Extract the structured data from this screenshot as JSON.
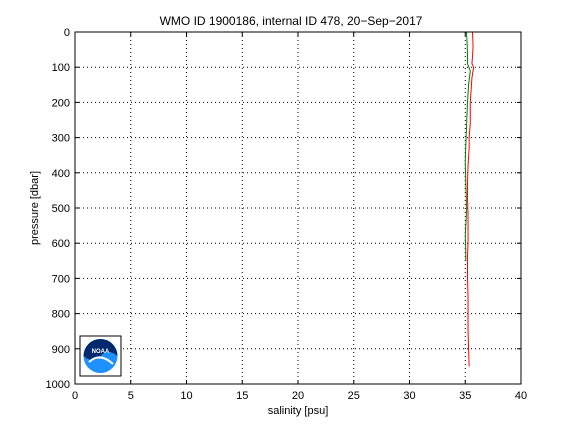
{
  "chart_data": {
    "type": "line",
    "title": "WMO ID 1900186, internal ID 478, 20−Sep−2017",
    "xlabel": "salinity [psu]",
    "ylabel": "pressure [dbar]",
    "xlim": [
      0,
      40
    ],
    "ylim": [
      0,
      1000
    ],
    "y_reversed": true,
    "grid": true,
    "grid_style": "dotted",
    "x_ticks": [
      0,
      5,
      10,
      15,
      20,
      25,
      30,
      35,
      40
    ],
    "y_ticks": [
      0,
      100,
      200,
      300,
      400,
      500,
      600,
      700,
      800,
      900,
      1000
    ],
    "logo": {
      "text": "NOAA",
      "position": "bottom-left"
    },
    "series": [
      {
        "color": "#ff0000",
        "points": [
          [
            35.65,
            0
          ],
          [
            35.7,
            40
          ],
          [
            35.65,
            70
          ],
          [
            35.6,
            90
          ],
          [
            35.75,
            100
          ],
          [
            35.6,
            130
          ],
          [
            35.45,
            200
          ],
          [
            35.45,
            260
          ],
          [
            35.35,
            300
          ],
          [
            35.35,
            330
          ],
          [
            35.25,
            380
          ],
          [
            35.2,
            430
          ],
          [
            35.2,
            470
          ],
          [
            35.25,
            520
          ],
          [
            35.25,
            560
          ],
          [
            35.25,
            600
          ],
          [
            35.2,
            640
          ],
          [
            35.2,
            700
          ],
          [
            35.25,
            750
          ],
          [
            35.25,
            800
          ],
          [
            35.25,
            850
          ],
          [
            35.3,
            900
          ],
          [
            35.35,
            950
          ]
        ]
      },
      {
        "color": "#008000",
        "points": [
          [
            35.1,
            0
          ],
          [
            35.15,
            20
          ],
          [
            35.2,
            60
          ],
          [
            35.2,
            90
          ],
          [
            35.45,
            110
          ],
          [
            35.3,
            150
          ],
          [
            35.2,
            200
          ],
          [
            35.1,
            280
          ],
          [
            35.05,
            320
          ],
          [
            35.0,
            370
          ],
          [
            35.05,
            430
          ],
          [
            35.1,
            480
          ],
          [
            35.1,
            520
          ],
          [
            35.05,
            550
          ],
          [
            35.0,
            580
          ],
          [
            35.05,
            620
          ],
          [
            35.05,
            650
          ]
        ]
      }
    ]
  }
}
